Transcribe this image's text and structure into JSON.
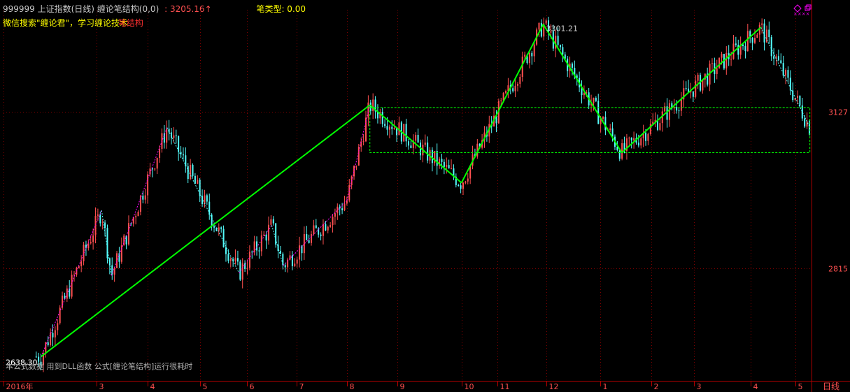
{
  "header": {
    "symbol_line": "999999 上证指数(日线) 缠论笔结构(0,0)",
    "price_value": "3205.16",
    "price_arrow": "↑",
    "bi_type_label": "笔类型: 0.00",
    "promo_text": "微信搜索\"缠论君\"，学习缠论技术",
    "promo_overlay": "笔结构",
    "peak_label": "3301.21",
    "low_label": "2638.30",
    "status_text": "本公式数据 用到DLL函数  公式[缠论笔结构]运行很耗时",
    "period_label": "日线",
    "icons": [
      "diamond-icon",
      "restore-window-icon"
    ]
  },
  "colors": {
    "bg": "#000000",
    "up": "#ff5050",
    "down": "#54fcfc",
    "bi": "#00ff00",
    "grid": "#800000",
    "axis": "#b00000",
    "axis_text": "#ff5050",
    "magenta": "#ff00ff"
  },
  "chart_data": {
    "type": "candlestick",
    "ylim": [
      2590,
      3330
    ],
    "y_ticks": [
      3127,
      2815
    ],
    "x_tick_labels": [
      "2016年",
      "3",
      "4",
      "5",
      "6",
      "7",
      "8",
      "9",
      "10",
      "11",
      "12",
      "1",
      "2",
      "3",
      "4",
      "5"
    ],
    "bi_points": [
      {
        "date": "2016-01-27",
        "value": 2638.3
      },
      {
        "date": "2016-08-15",
        "value": 3140
      },
      {
        "date": "2016-10-10",
        "value": 2985
      },
      {
        "date": "2016-11-29",
        "value": 3301.21
      },
      {
        "date": "2017-01-16",
        "value": 3045
      },
      {
        "date": "2017-04-11",
        "value": 3295
      }
    ],
    "pivot_zone": {
      "start": "2016-08-15",
      "end": "2017-05-11",
      "high": 3135,
      "low": 3045
    },
    "minor_strokes": [
      {
        "date": "2016-01-27",
        "value": 2638.3
      },
      {
        "date": "2016-03-04",
        "value": 2930
      },
      {
        "date": "2016-03-10",
        "value": 2800
      },
      {
        "date": "2016-04-13",
        "value": 3095
      },
      {
        "date": "2016-05-27",
        "value": 2805
      },
      {
        "date": "2016-06-16",
        "value": 2900
      },
      {
        "date": "2016-06-23",
        "value": 2820
      },
      {
        "date": "2016-08-01",
        "value": 2950
      },
      {
        "date": "2016-08-15",
        "value": 3140
      },
      {
        "date": "2016-10-10",
        "value": 2985
      },
      {
        "date": "2016-11-29",
        "value": 3301.21
      },
      {
        "date": "2017-01-16",
        "value": 3045
      },
      {
        "date": "2017-04-11",
        "value": 3295
      },
      {
        "date": "2017-05-11",
        "value": 3095
      }
    ],
    "last_value": 3205.16
  }
}
